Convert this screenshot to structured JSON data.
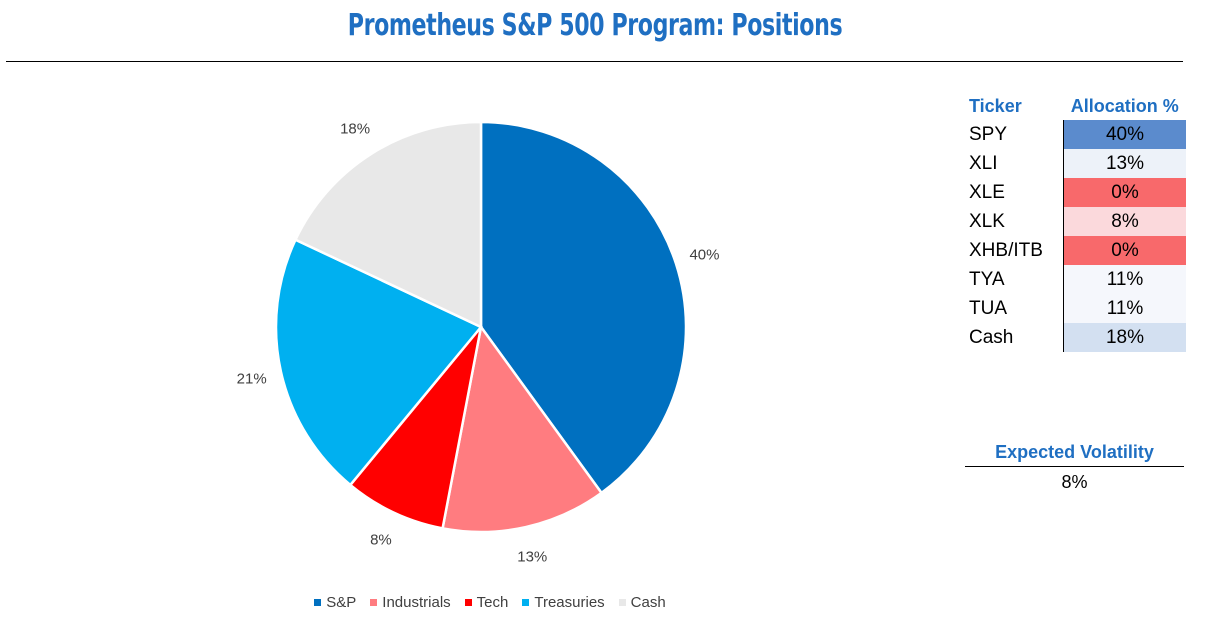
{
  "title": "Prometheus S&P 500 Program: Positions",
  "chart_data": {
    "type": "pie",
    "title": "",
    "slices": [
      {
        "name": "S&P",
        "value": 40,
        "label": "40%",
        "color": "#0070c0"
      },
      {
        "name": "Industrials",
        "value": 13,
        "label": "13%",
        "color": "#ff7c80"
      },
      {
        "name": "Tech",
        "value": 8,
        "label": "8%",
        "color": "#ff0000"
      },
      {
        "name": "Treasuries",
        "value": 21,
        "label": "21%",
        "color": "#00b0f0"
      },
      {
        "name": "Cash",
        "value": 18,
        "label": "18%",
        "color": "#e8e8e8"
      }
    ],
    "legend": "bottom"
  },
  "table": {
    "headers": {
      "ticker": "Ticker",
      "allocation": "Allocation %"
    },
    "rows": [
      {
        "ticker": "SPY",
        "allocation": "40%",
        "bg": "#5b8bcd"
      },
      {
        "ticker": "XLI",
        "allocation": "13%",
        "bg": "#edf2f9"
      },
      {
        "ticker": "XLE",
        "allocation": "0%",
        "bg": "#f8696b"
      },
      {
        "ticker": "XLK",
        "allocation": "8%",
        "bg": "#fbd9dc"
      },
      {
        "ticker": "XHB/ITB",
        "allocation": "0%",
        "bg": "#f8696b"
      },
      {
        "ticker": "TYA",
        "allocation": "11%",
        "bg": "#f5f7fc"
      },
      {
        "ticker": "TUA",
        "allocation": "11%",
        "bg": "#f5f7fc"
      },
      {
        "ticker": "Cash",
        "allocation": "18%",
        "bg": "#d3e0f1"
      }
    ]
  },
  "volatility": {
    "label": "Expected Volatility",
    "value": "8%"
  }
}
